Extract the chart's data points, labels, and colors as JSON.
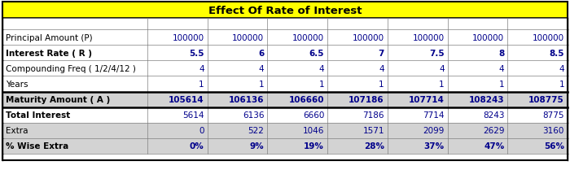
{
  "title": "Effect Of Rate of Interest",
  "title_bg": "#FFFF00",
  "title_color": "#000000",
  "rows": [
    {
      "label": "Principal Amount (P)",
      "values": [
        "100000",
        "100000",
        "100000",
        "100000",
        "100000",
        "100000",
        "100000"
      ],
      "bold": false,
      "label_bold": false,
      "bg": "#FFFFFF",
      "val_bg": "#FFFFFF"
    },
    {
      "label": "Interest Rate ( R )",
      "values": [
        "5.5",
        "6",
        "6.5",
        "7",
        "7.5",
        "8",
        "8.5"
      ],
      "bold": true,
      "label_bold": true,
      "bg": "#FFFFFF",
      "val_bg": "#FFFFFF"
    },
    {
      "label": "Compounding Freq ( 1/2/4/12 )",
      "values": [
        "4",
        "4",
        "4",
        "4",
        "4",
        "4",
        "4"
      ],
      "bold": false,
      "label_bold": false,
      "bg": "#FFFFFF",
      "val_bg": "#FFFFFF"
    },
    {
      "label": "Years",
      "values": [
        "1",
        "1",
        "1",
        "1",
        "1",
        "1",
        "1"
      ],
      "bold": false,
      "label_bold": false,
      "bg": "#FFFFFF",
      "val_bg": "#FFFFFF"
    },
    {
      "label": "Maturity Amount ( A )",
      "values": [
        "105614",
        "106136",
        "106660",
        "107186",
        "107714",
        "108243",
        "108775"
      ],
      "bold": true,
      "label_bold": true,
      "bg": "#D3D3D3",
      "val_bg": "#D3D3D3"
    },
    {
      "label": "Total Interest",
      "values": [
        "5614",
        "6136",
        "6660",
        "7186",
        "7714",
        "8243",
        "8775"
      ],
      "bold": false,
      "label_bold": true,
      "bg": "#FFFFFF",
      "val_bg": "#FFFFFF"
    },
    {
      "label": "Extra",
      "values": [
        "0",
        "522",
        "1046",
        "1571",
        "2099",
        "2629",
        "3160"
      ],
      "bold": false,
      "label_bold": false,
      "bg": "#D3D3D3",
      "val_bg": "#D3D3D3"
    },
    {
      "label": "% Wise Extra",
      "values": [
        "0%",
        "9%",
        "19%",
        "28%",
        "37%",
        "47%",
        "56%"
      ],
      "bold": true,
      "label_bold": true,
      "bg": "#D3D3D3",
      "val_bg": "#D3D3D3"
    }
  ],
  "border_color": "#000000",
  "grid_color": "#808080",
  "label_color": "#000000",
  "value_color": "#00008B",
  "figw": 7.0,
  "figh": 2.26,
  "dpi": 100
}
